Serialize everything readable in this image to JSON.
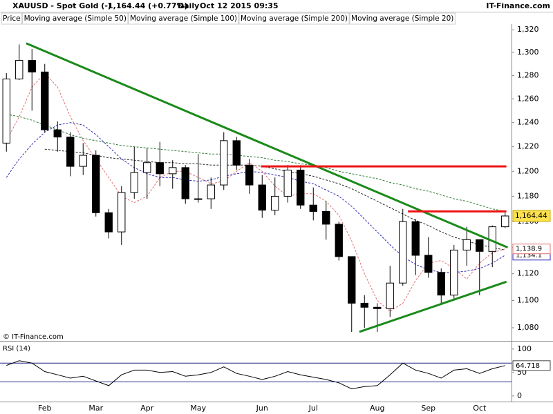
{
  "chart_data": [
    {
      "type": "candlestick",
      "title": "XAUUSD - Spot Gold (-)",
      "last": "1,164.44 (+0.77%)",
      "period": "Daily",
      "date": "Oct 12 2015 09:35",
      "source": "IT-Finance.com",
      "watermark": "© IT-Finance.com",
      "price_name": "Price",
      "up_color": "#ffffff",
      "down_color": "#000000",
      "categories": [
        null,
        null,
        null,
        "Feb",
        null,
        null,
        null,
        "Mar",
        null,
        null,
        null,
        "Apr",
        null,
        null,
        null,
        "May",
        null,
        null,
        null,
        null,
        "Jun",
        null,
        null,
        null,
        "Jul",
        null,
        null,
        null,
        null,
        "Aug",
        null,
        null,
        null,
        "Sep",
        null,
        null,
        null,
        "Oct",
        null,
        null
      ],
      "open": [
        1223,
        1277,
        1293,
        1283,
        1234,
        1228,
        1204,
        1213,
        1167,
        1152,
        1183,
        1199,
        1207,
        1198,
        1203,
        1178,
        1178,
        1189,
        1225,
        1205,
        1189,
        1169,
        1180,
        1201,
        1173,
        1168,
        1158,
        1133,
        1098,
        1095,
        1094,
        1113,
        1160,
        1134,
        1121,
        1104,
        1138,
        1146,
        1137,
        1156
      ],
      "high": [
        1282,
        1307,
        1303,
        1290,
        1241,
        1232,
        1223,
        1217,
        1170,
        1188,
        1220,
        1219,
        1224,
        1209,
        1205,
        1214,
        1195,
        1232,
        1228,
        1210,
        1197,
        1195,
        1205,
        1205,
        1187,
        1176,
        1160,
        1133,
        1104,
        1098,
        1126,
        1170,
        1162,
        1148,
        1124,
        1142,
        1156,
        1146,
        1157,
        1167
      ],
      "low": [
        1216,
        1276,
        1250,
        1232,
        1216,
        1196,
        1197,
        1164,
        1147,
        1142,
        1178,
        1178,
        1188,
        1186,
        1174,
        1175,
        1170,
        1185,
        1201,
        1182,
        1163,
        1165,
        1175,
        1170,
        1161,
        1146,
        1130,
        1077,
        1080,
        1077,
        1088,
        1111,
        1119,
        1117,
        1098,
        1101,
        1126,
        1104,
        1125,
        1155
      ],
      "close": [
        1277,
        1293,
        1283,
        1234,
        1228,
        1204,
        1213,
        1167,
        1152,
        1183,
        1199,
        1207,
        1198,
        1203,
        1178,
        1178,
        1189,
        1225,
        1205,
        1189,
        1169,
        1180,
        1201,
        1173,
        1168,
        1158,
        1133,
        1098,
        1095,
        1094,
        1113,
        1160,
        1134,
        1121,
        1104,
        1138,
        1146,
        1137,
        1156,
        1164.44
      ],
      "last_price": {
        "value": 1164.44,
        "label": "1,164.44"
      },
      "series": [
        {
          "name": "Moving average (Simple 50)",
          "color": "#2b2bb8",
          "last_label": "1,134.1",
          "values": [
            1195,
            1210,
            1222,
            1232,
            1238,
            1240,
            1238,
            1230,
            1220,
            1210,
            1203,
            1198,
            1195,
            1195,
            1193,
            1192,
            1193,
            1196,
            1198,
            1200,
            1199,
            1197,
            1195,
            1192,
            1190,
            1185,
            1180,
            1172,
            1162,
            1152,
            1142,
            1133,
            1127,
            1123,
            1121,
            1121,
            1122,
            1124,
            1128,
            1134.1
          ]
        },
        {
          "name": "Moving average (Simple 100)",
          "color": "#222222",
          "values": [
            null,
            null,
            null,
            1218,
            1217,
            1216,
            1215,
            1213,
            1211,
            1210,
            1209,
            1208,
            1207,
            1207,
            1206,
            1206,
            1205,
            1205,
            1205,
            1205,
            1204,
            1202,
            1200,
            1198,
            1196,
            1193,
            1190,
            1186,
            1181,
            1176,
            1171,
            1166,
            1161,
            1157,
            1152,
            1148,
            1145,
            1142,
            1140,
            1138
          ]
        },
        {
          "name": "Moving average (Simple 200)",
          "color": "#2e7d32",
          "values": [
            1247,
            1245,
            1242,
            1238,
            1234,
            1230,
            1227,
            1225,
            1223,
            1221,
            1220,
            1219,
            1218,
            1217,
            1216,
            1215,
            1214,
            1214,
            1213,
            1212,
            1211,
            1209,
            1208,
            1206,
            1205,
            1203,
            1200,
            1198,
            1196,
            1194,
            1191,
            1189,
            1186,
            1184,
            1181,
            1178,
            1176,
            1173,
            1170,
            1168
          ]
        },
        {
          "name": "Moving average (Simple 20)",
          "color": "#e07272",
          "last_label": "1,138.9",
          "values": [
            1225,
            1245,
            1270,
            1282,
            1270,
            1245,
            1225,
            1210,
            1195,
            1180,
            1175,
            1180,
            1195,
            1200,
            1200,
            1195,
            1190,
            1192,
            1200,
            1207,
            1200,
            1188,
            1180,
            1182,
            1182,
            1176,
            1165,
            1145,
            1120,
            1100,
            1092,
            1098,
            1115,
            1128,
            1130,
            1124,
            1116,
            1128,
            1136,
            1138.9
          ]
        }
      ],
      "trendlines": [
        {
          "color": "#1a8a1a",
          "points": [
            [
              1.55,
              1308
            ],
            [
              39.2,
              1140
            ]
          ]
        },
        {
          "color": "#1a8a1a",
          "points": [
            [
              27.6,
              1077
            ],
            [
              39.1,
              1114
            ]
          ]
        },
        {
          "color": "#ee1111",
          "points": [
            [
              19.9,
              1204
            ],
            [
              39.1,
              1204
            ]
          ]
        },
        {
          "color": "#ee1111",
          "points": [
            [
              31.4,
              1168
            ],
            [
              39.1,
              1168
            ]
          ]
        }
      ],
      "ylog": true,
      "grid": false,
      "ylim": [
        1071.5,
        1325
      ],
      "yticks": [
        {
          "value": 1080,
          "label": "1,080"
        },
        {
          "value": 1100,
          "label": "1,100"
        },
        {
          "value": 1120,
          "label": "1,120"
        },
        {
          "value": 1140,
          "label": "1,140"
        },
        {
          "value": 1160,
          "label": "1,160"
        },
        {
          "value": 1180,
          "label": "1,180"
        },
        {
          "value": 1200,
          "label": "1,200"
        },
        {
          "value": 1220,
          "label": "1,220"
        },
        {
          "value": 1240,
          "label": "1,240"
        },
        {
          "value": 1260,
          "label": "1,260"
        },
        {
          "value": 1280,
          "label": "1,280"
        },
        {
          "value": 1300,
          "label": "1,300"
        },
        {
          "value": 1320,
          "label": "1,320"
        }
      ]
    },
    {
      "type": "line",
      "title": "RSI (14)",
      "series": [
        {
          "color": "#000000",
          "last_label": "64.718",
          "values": [
            65,
            75,
            70,
            52,
            45,
            38,
            42,
            32,
            22,
            45,
            55,
            55,
            50,
            52,
            42,
            45,
            50,
            62,
            48,
            42,
            35,
            42,
            52,
            45,
            40,
            35,
            28,
            15,
            20,
            22,
            45,
            70,
            55,
            48,
            38,
            55,
            58,
            48,
            58,
            64.718
          ]
        }
      ],
      "levels": [
        30,
        70
      ],
      "level_color": "#1a237e",
      "ylim": [
        -12,
        113
      ],
      "yticks": [
        0,
        50,
        100
      ]
    }
  ]
}
